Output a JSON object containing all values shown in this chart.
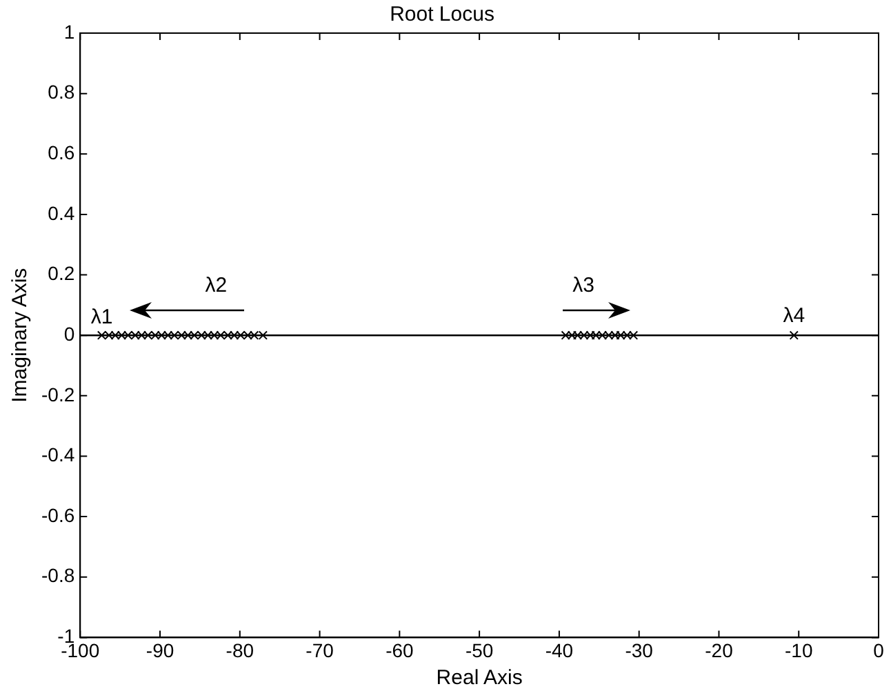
{
  "chart_data": {
    "type": "scatter",
    "title": "Root Locus",
    "xlabel": "Real Axis",
    "ylabel": "Imaginary Axis",
    "xlim": [
      -100,
      0
    ],
    "xticks": [
      -100,
      -90,
      -80,
      -70,
      -60,
      -50,
      -40,
      -30,
      -20,
      -10,
      0
    ],
    "ylim": [
      -1,
      1
    ],
    "yticks": [
      -1,
      -0.8,
      -0.6,
      -0.4,
      -0.2,
      0,
      0.2,
      0.4,
      0.6,
      0.8,
      1
    ],
    "grid": false,
    "legend": false,
    "marker": "cross",
    "ref_lines": [
      {
        "axis": "y",
        "value": 0,
        "color": "#000000"
      }
    ],
    "annotations": [
      {
        "text": "λ1",
        "x": -97.3,
        "y": 0
      },
      {
        "text": "λ2",
        "x": -77.1,
        "y": 0
      },
      {
        "text": "λ3",
        "x": -39.2,
        "y": 0
      },
      {
        "text": "λ4",
        "x": -10.6,
        "y": 0
      }
    ],
    "series": [
      {
        "color": "#000000",
        "x": [
          -97.3,
          -96.4,
          -95.6,
          -94.8,
          -94.0,
          -93.1,
          -92.3,
          -91.5,
          -90.6,
          -89.8,
          -89.0,
          -88.2,
          -87.3,
          -86.5,
          -85.7,
          -84.8,
          -84.0,
          -83.2,
          -82.4,
          -81.5,
          -80.7,
          -79.9,
          -79.0,
          -78.2,
          -77.1,
          -39.2,
          -38.4,
          -37.7,
          -36.9,
          -36.1,
          -35.4,
          -34.6,
          -33.8,
          -33.0,
          -32.3,
          -31.5,
          -30.7,
          -10.6
        ],
        "values": [
          0,
          0,
          0,
          0,
          0,
          0,
          0,
          0,
          0,
          0,
          0,
          0,
          0,
          0,
          0,
          0,
          0,
          0,
          0,
          0,
          0,
          0,
          0,
          0,
          0,
          0,
          0,
          0,
          0,
          0,
          0,
          0,
          0,
          0,
          0,
          0,
          0,
          0
        ]
      }
    ]
  }
}
